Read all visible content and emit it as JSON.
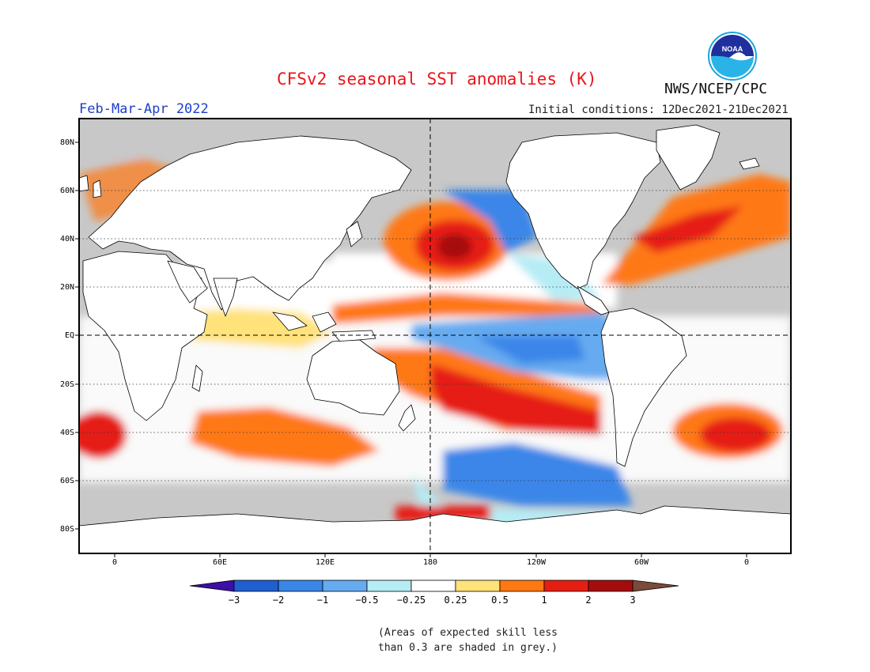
{
  "header": {
    "title": "CFSv2 seasonal SST anomalies (K)",
    "agency": "NWS/NCEP/CPC",
    "season": "Feb-Mar-Apr 2022",
    "initial_conditions": "Initial conditions: 12Dec2021-21Dec2021",
    "logo_text": "NOAA"
  },
  "map": {
    "projection": "cylindrical equidistant, centered 180",
    "lat_labels": [
      "80N",
      "60N",
      "40N",
      "20N",
      "EQ",
      "20S",
      "40S",
      "60S",
      "80S"
    ],
    "lon_labels": [
      "0",
      "60E",
      "120E",
      "180",
      "120W",
      "60W",
      "0"
    ],
    "dashed_reference_lines": [
      "EQ",
      "180"
    ],
    "dotted_grid_latitudes": [
      "60N",
      "40N",
      "20N",
      "20S",
      "40S",
      "60S"
    ],
    "land_color": "#ffffff",
    "low_skill_color": "#c8c8c8",
    "anomaly_regions": [
      {
        "name": "north-pacific-warm-blob",
        "category": ">2"
      },
      {
        "name": "northeast-pacific-cool",
        "category": "-1 to -0.5"
      },
      {
        "name": "equatorial-pacific-la-nina-cool",
        "category": "-1 to -0.5"
      },
      {
        "name": "west-pacific-warm-band",
        "category": "0.5 to 1"
      },
      {
        "name": "south-pacific-warm-band",
        "category": "1 to 2"
      },
      {
        "name": "southern-ocean-pacific-cool",
        "category": "-1 to -0.5"
      },
      {
        "name": "north-atlantic-warm",
        "category": "0.5 to 2"
      },
      {
        "name": "south-atlantic-warm",
        "category": "1 to 2"
      },
      {
        "name": "south-indian-ocean-warm",
        "category": "0.5 to 1"
      },
      {
        "name": "indian-ocean-weak-warm",
        "category": "0.25 to 0.5"
      }
    ]
  },
  "colorbar": {
    "tick_labels": [
      "−3",
      "−2",
      "−1",
      "−0.5",
      "−0.25",
      "0.25",
      "0.5",
      "1",
      "2",
      "3"
    ],
    "colors": [
      "#3b0fa8",
      "#1f5fd0",
      "#3a86e8",
      "#66abf0",
      "#b6ecf4",
      "#ffffff",
      "#ffe27a",
      "#ff7812",
      "#e61e12",
      "#a50d0d",
      "#7a4a3a"
    ]
  },
  "footnote": {
    "line1": "(Areas of expected skill less",
    "line2": "than 0.3 are shaded in grey.)"
  }
}
